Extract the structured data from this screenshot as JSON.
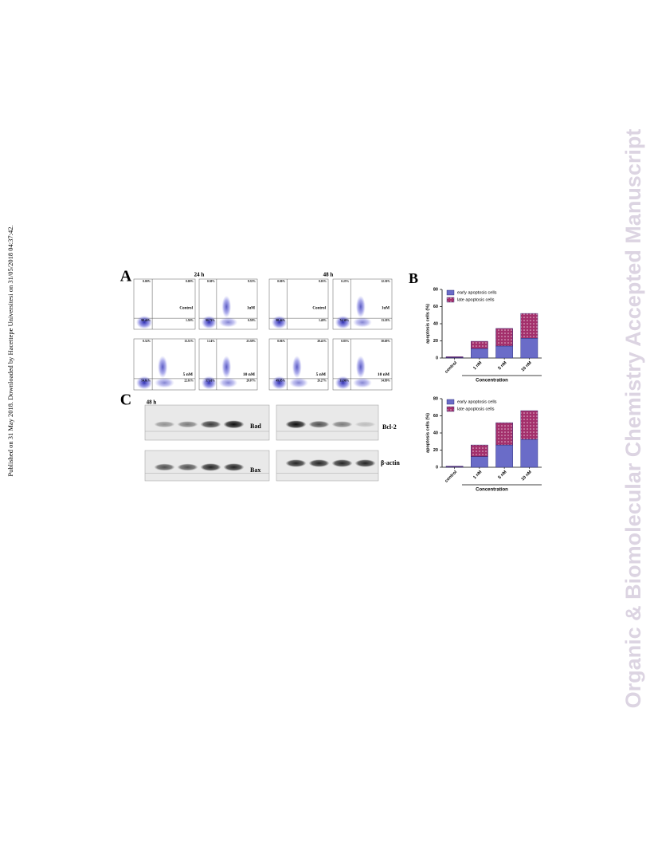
{
  "page": {
    "side_note": "Published on 31 May 2018. Downloaded by Hacettepe Universitesi on 31/05/2018 04:37:42.",
    "watermark": "Organic & Biomolecular Chemistry Accepted Manuscript"
  },
  "panel_a": {
    "label": "A",
    "headers": [
      "24 h",
      "48 h"
    ],
    "plots": [
      {
        "condition": "Control",
        "quadrants": [
          "0.00%",
          "0.00%",
          "98.40%",
          "1.50%"
        ]
      },
      {
        "condition": "1uM",
        "quadrants": [
          "0.30%",
          "8.35%",
          "90.72%",
          "0.58%"
        ]
      },
      {
        "condition": "Control",
        "quadrants": [
          "0.00%",
          "0.03%",
          "98.44%",
          "1.48%"
        ]
      },
      {
        "condition": "1uM",
        "quadrants": [
          "0.25%",
          "12.30%",
          "74.30%",
          "13.18%"
        ]
      },
      {
        "condition": "5 nM",
        "quadrants": [
          "0.32%",
          "13.51%",
          "54.61%",
          "22.61%"
        ]
      },
      {
        "condition": "10 nM",
        "quadrants": [
          "1.14%",
          "23.38%",
          "57.61%",
          "28.07%"
        ]
      },
      {
        "condition": "5 nM",
        "quadrants": [
          "0.06%",
          "20.41%",
          "49.85%",
          "26.27%"
        ]
      },
      {
        "condition": "10 nM",
        "quadrants": [
          "0.83%",
          "30.69%",
          "33.96%",
          "34.99%"
        ]
      }
    ]
  },
  "panel_b": {
    "label": "B"
  },
  "panel_c": {
    "label": "C",
    "time": "48 h",
    "blots": [
      "Bad",
      "Bcl-2",
      "Bax",
      "β-actin"
    ]
  },
  "chart_data": [
    {
      "type": "bar",
      "stacked": true,
      "xlabel": "Concentration",
      "ylabel": "apoptosis cells (%)",
      "categories": [
        "control",
        "1 nM",
        "5 nM",
        "10 nM"
      ],
      "ylim": [
        0,
        80
      ],
      "yticks": [
        0,
        20,
        40,
        60,
        80
      ],
      "legend": "upper left",
      "series": [
        {
          "name": "early apoptosis cells",
          "color": "#6a6cc8",
          "values": [
            0.5,
            11,
            14,
            23
          ]
        },
        {
          "name": "late apoptosis cells",
          "color": "#a3306c",
          "values": [
            1,
            8.5,
            20.5,
            29
          ]
        }
      ]
    },
    {
      "type": "bar",
      "stacked": true,
      "xlabel": "Concentration",
      "ylabel": "apoptosis cells (%)",
      "categories": [
        "control",
        "1 nM",
        "5 nM",
        "10 nM"
      ],
      "ylim": [
        0,
        80
      ],
      "yticks": [
        0,
        20,
        40,
        60,
        80
      ],
      "legend": "upper left",
      "series": [
        {
          "name": "early apoptosis cells",
          "color": "#6a6cc8",
          "values": [
            0.5,
            12.5,
            26,
            32.5
          ]
        },
        {
          "name": "late apoptosis cells",
          "color": "#a3306c",
          "values": [
            0.8,
            13.5,
            26,
            33.5
          ]
        }
      ]
    }
  ]
}
